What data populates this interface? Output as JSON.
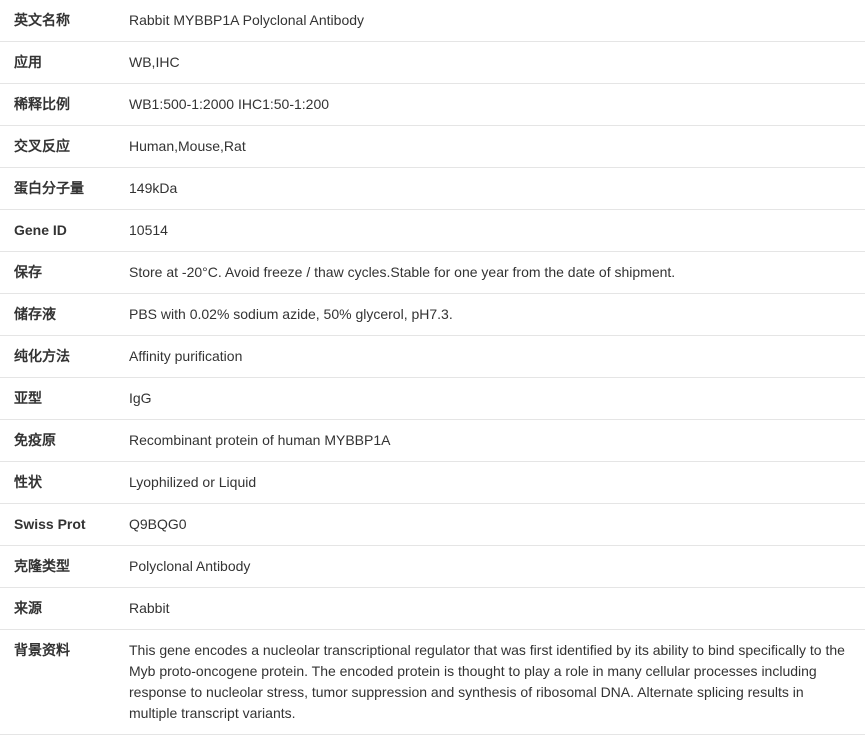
{
  "rows": [
    {
      "label": "英文名称",
      "value": "Rabbit MYBBP1A Polyclonal Antibody"
    },
    {
      "label": "应用",
      "value": "WB,IHC"
    },
    {
      "label": "稀释比例",
      "value": "WB1:500-1:2000 IHC1:50-1:200"
    },
    {
      "label": "交叉反应",
      "value": "Human,Mouse,Rat"
    },
    {
      "label": "蛋白分子量",
      "value": "149kDa"
    },
    {
      "label": "Gene ID",
      "value": "10514"
    },
    {
      "label": "保存",
      "value": "Store at -20°C. Avoid freeze / thaw cycles.Stable for one year from the date of shipment."
    },
    {
      "label": "储存液",
      "value": "PBS with 0.02% sodium azide, 50% glycerol, pH7.3."
    },
    {
      "label": "纯化方法",
      "value": "Affinity purification"
    },
    {
      "label": "亚型",
      "value": "IgG"
    },
    {
      "label": "免疫原",
      "value": "Recombinant protein of human MYBBP1A"
    },
    {
      "label": "性状",
      "value": "Lyophilized or Liquid"
    },
    {
      "label": "Swiss Prot",
      "value": "Q9BQG0"
    },
    {
      "label": "克隆类型",
      "value": "Polyclonal Antibody"
    },
    {
      "label": "来源",
      "value": "Rabbit"
    },
    {
      "label": "背景资料",
      "value": "This gene encodes a nucleolar transcriptional regulator that was first identified by its ability to bind specifically to the Myb proto-oncogene protein. The encoded protein is thought to play a role in many cellular processes including response to nucleolar stress, tumor suppression and synthesis of ribosomal DNA. Alternate splicing results in multiple transcript variants."
    }
  ]
}
